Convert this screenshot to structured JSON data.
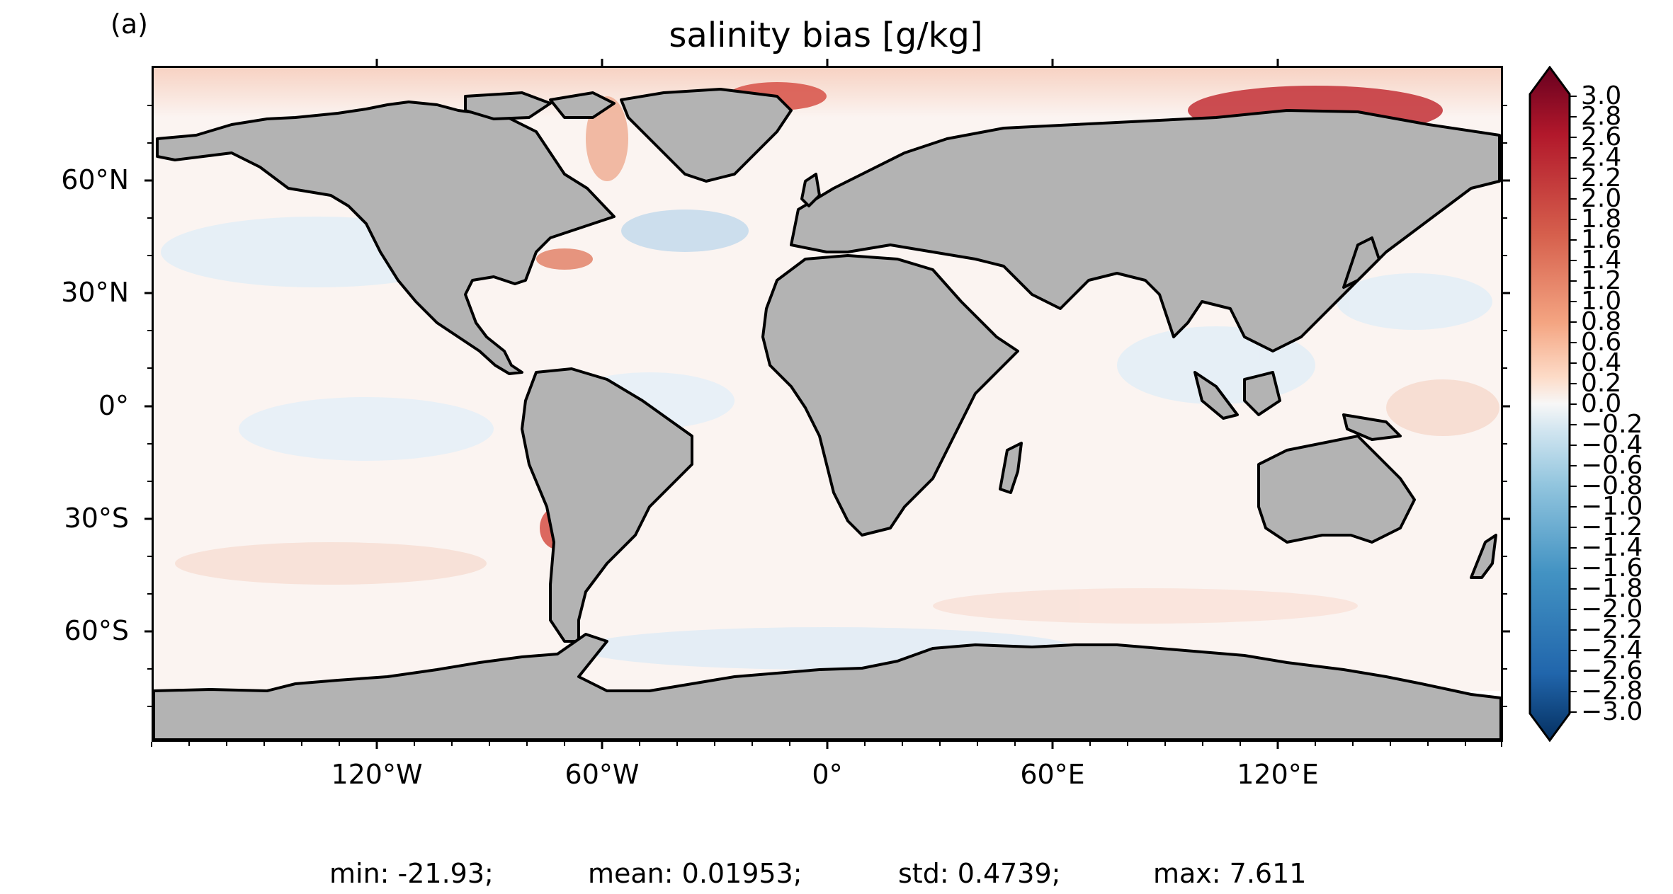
{
  "panel_label": "(a)",
  "title": "salinity bias [g/kg]",
  "map": {
    "projection": "equirectangular",
    "land_color": "#b3b3b3",
    "coast_color": "#000000",
    "y_axis_ticks": [
      "60°N",
      "30°N",
      "0°",
      "30°S",
      "60°S"
    ],
    "x_axis_ticks": [
      "120°W",
      "60°W",
      "0°",
      "60°E",
      "120°E"
    ]
  },
  "colorbar": {
    "colormap": "RdBu_r",
    "min": -3.0,
    "max": 3.0,
    "extend": "both",
    "tick_labels": [
      "3.0",
      "2.8",
      "2.6",
      "2.4",
      "2.2",
      "2.0",
      "1.8",
      "1.6",
      "1.4",
      "1.2",
      "1.0",
      "0.8",
      "0.6",
      "0.4",
      "0.2",
      "0.0",
      "−0.2",
      "−0.4",
      "−0.6",
      "−0.8",
      "−1.0",
      "−1.2",
      "−1.4",
      "−1.6",
      "−1.8",
      "−2.0",
      "−2.2",
      "−2.4",
      "−2.6",
      "−2.8",
      "−3.0"
    ]
  },
  "stats": {
    "min": "min: -21.93;",
    "mean": "mean: 0.01953;",
    "std": "std: 0.4739;",
    "max": "max: 7.611"
  }
}
